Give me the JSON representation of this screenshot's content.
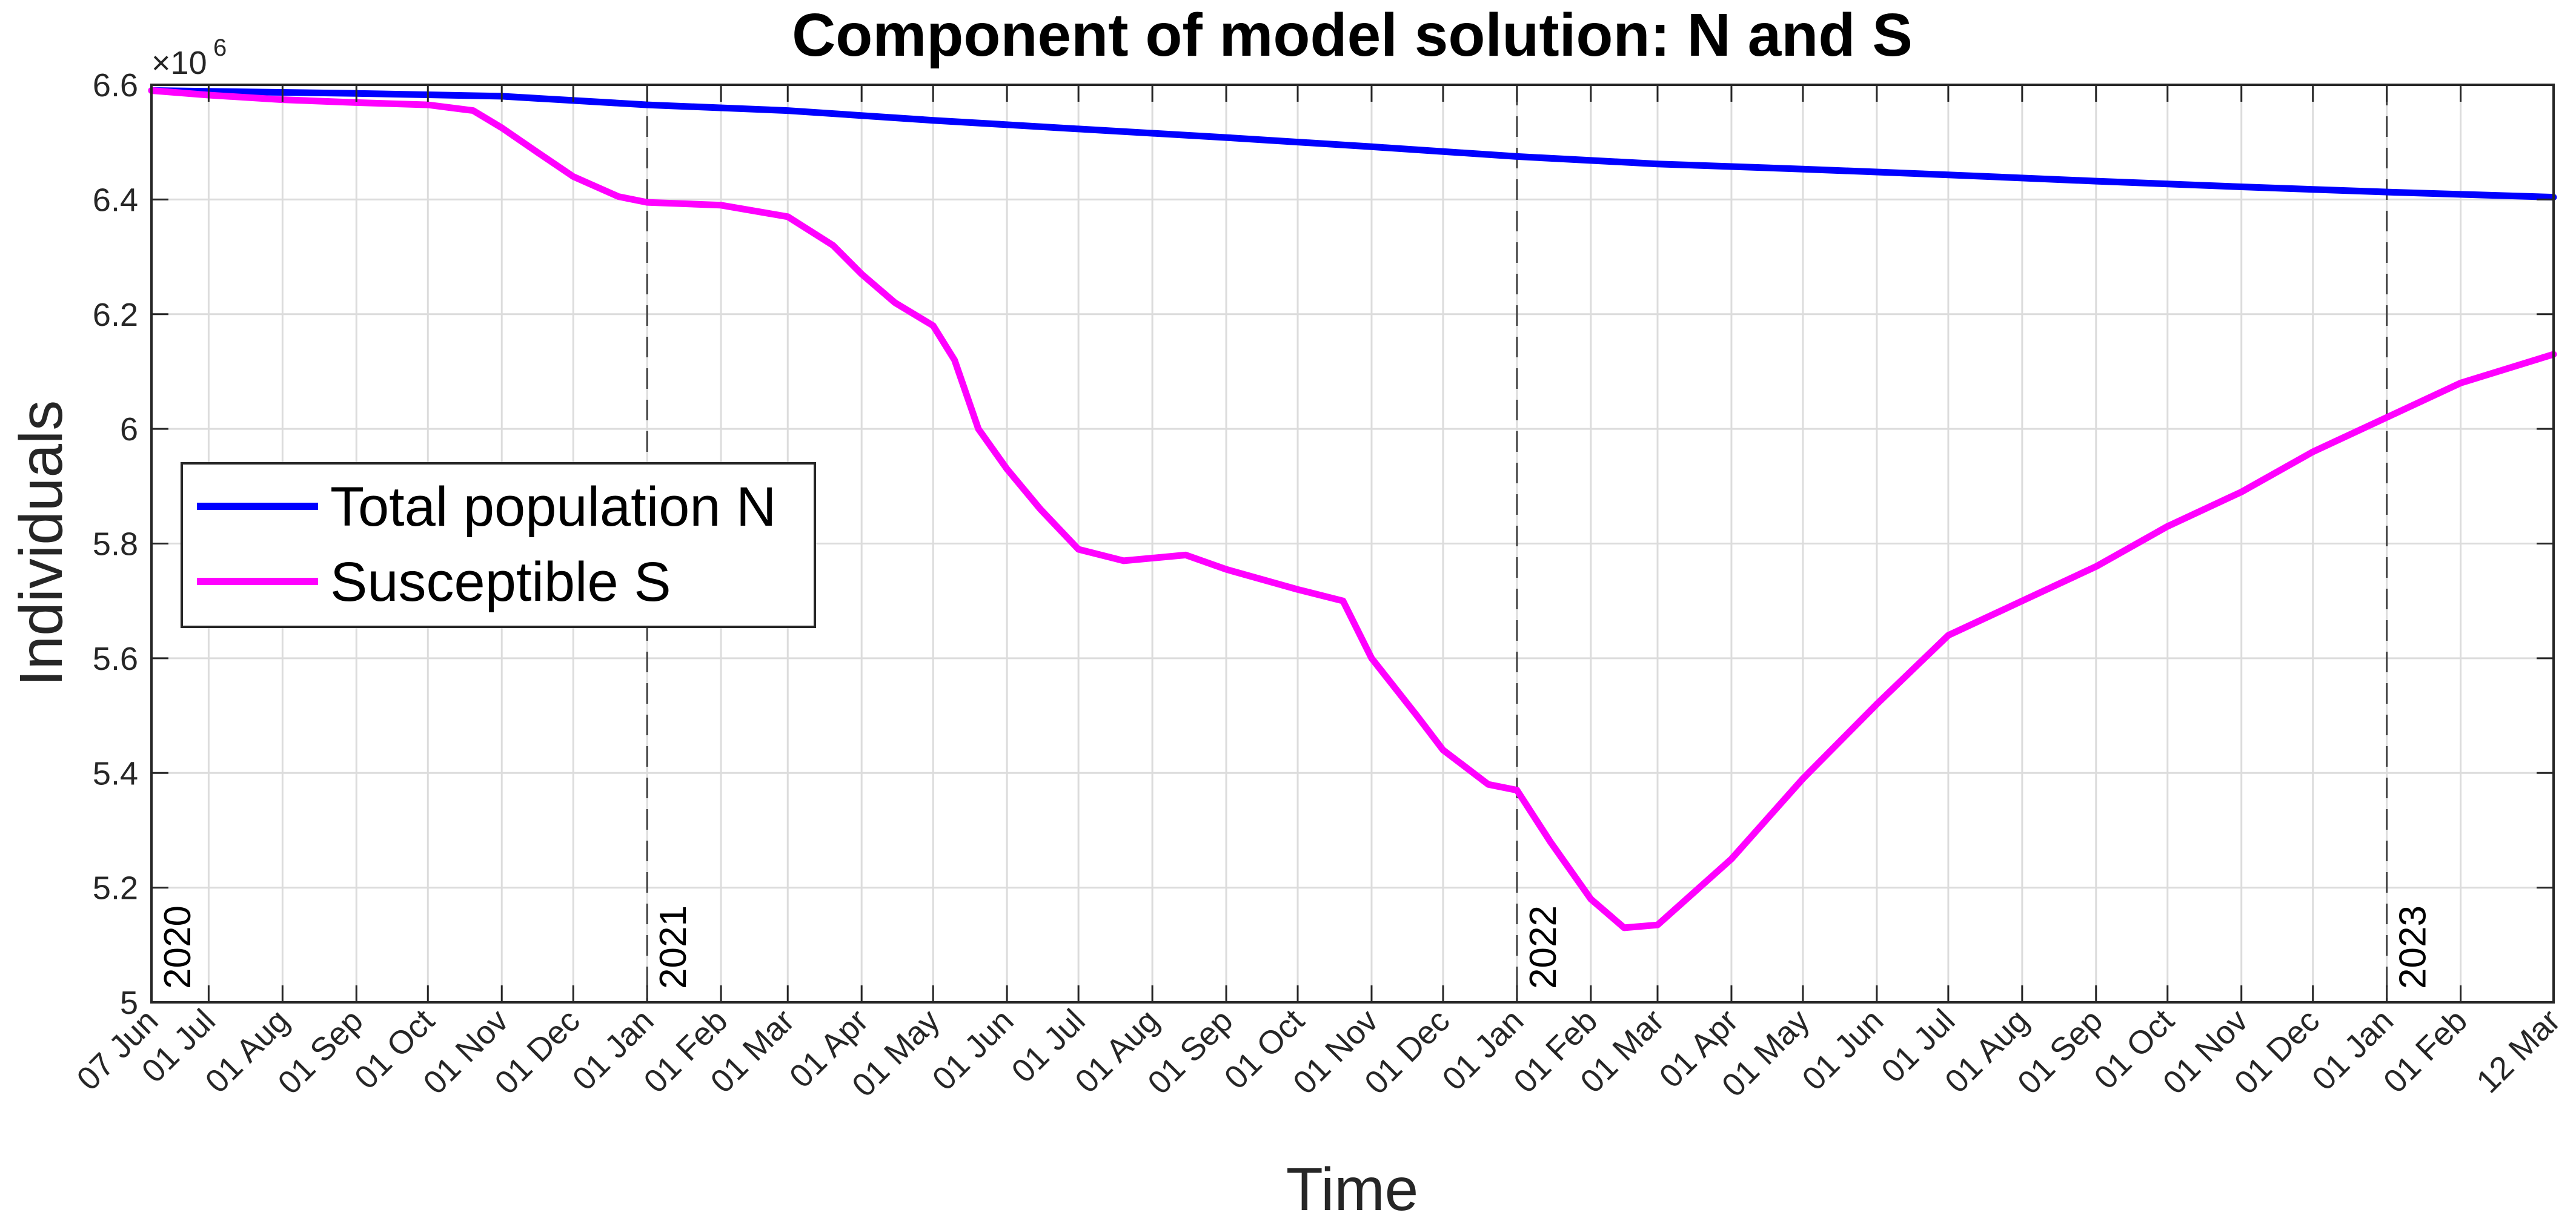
{
  "chart_data": {
    "type": "line",
    "title": "Component of model solution: N and S",
    "xlabel": "Time",
    "ylabel": "Individuals",
    "y_exponent_label": "×10",
    "y_exponent_power": "6",
    "ylim": [
      5.0,
      6.6
    ],
    "y_ticks": [
      5.0,
      5.2,
      5.4,
      5.6,
      5.8,
      6.0,
      6.2,
      6.4,
      6.6
    ],
    "y_tick_labels": [
      "5",
      "5.2",
      "5.4",
      "5.6",
      "5.8",
      "6",
      "6.2",
      "6.4",
      "6.6"
    ],
    "xlim": [
      "2020-06-07",
      "2023-03-12"
    ],
    "x_ticks": [
      "2020-06-07",
      "2020-07-01",
      "2020-08-01",
      "2020-09-01",
      "2020-10-01",
      "2020-11-01",
      "2020-12-01",
      "2021-01-01",
      "2021-02-01",
      "2021-03-01",
      "2021-04-01",
      "2021-05-01",
      "2021-06-01",
      "2021-07-01",
      "2021-08-01",
      "2021-09-01",
      "2021-10-01",
      "2021-11-01",
      "2021-12-01",
      "2022-01-01",
      "2022-02-01",
      "2022-03-01",
      "2022-04-01",
      "2022-05-01",
      "2022-06-01",
      "2022-07-01",
      "2022-08-01",
      "2022-09-01",
      "2022-10-01",
      "2022-11-01",
      "2022-12-01",
      "2023-01-01",
      "2023-02-01",
      "2023-03-12"
    ],
    "x_tick_labels": [
      "07 Jun",
      "01 Jul",
      "01 Aug",
      "01 Sep",
      "01 Oct",
      "01 Nov",
      "01 Dec",
      "01 Jan",
      "01 Feb",
      "01 Mar",
      "01 Apr",
      "01 May",
      "01 Jun",
      "01 Jul",
      "01 Aug",
      "01 Sep",
      "01 Oct",
      "01 Nov",
      "01 Dec",
      "01 Jan",
      "01 Feb",
      "01 Mar",
      "01 Apr",
      "01 May",
      "01 Jun",
      "01 Jul",
      "01 Aug",
      "01 Sep",
      "01 Oct",
      "01 Nov",
      "01 Dec",
      "01 Jan",
      "01 Feb",
      "12 Mar"
    ],
    "year_markers": [
      {
        "label": "2020",
        "date": "2020-06-07"
      },
      {
        "label": "2021",
        "date": "2021-01-01"
      },
      {
        "label": "2022",
        "date": "2022-01-01"
      },
      {
        "label": "2023",
        "date": "2023-01-01"
      }
    ],
    "grid": true,
    "legend_position": "center-left",
    "series": [
      {
        "name": "Total population N",
        "color": "#0000ff",
        "points": [
          [
            "2020-06-07",
            6.59
          ],
          [
            "2020-09-01",
            6.585
          ],
          [
            "2020-11-01",
            6.58
          ],
          [
            "2021-01-01",
            6.565
          ],
          [
            "2021-03-01",
            6.555
          ],
          [
            "2021-05-01",
            6.538
          ],
          [
            "2021-07-01",
            6.523
          ],
          [
            "2021-09-01",
            6.508
          ],
          [
            "2021-11-01",
            6.492
          ],
          [
            "2022-01-01",
            6.475
          ],
          [
            "2022-03-01",
            6.462
          ],
          [
            "2022-05-01",
            6.453
          ],
          [
            "2022-07-01",
            6.443
          ],
          [
            "2022-09-01",
            6.432
          ],
          [
            "2022-11-01",
            6.422
          ],
          [
            "2023-01-01",
            6.413
          ],
          [
            "2023-03-12",
            6.404
          ]
        ]
      },
      {
        "name": "Susceptible S",
        "color": "#ff00ff",
        "points": [
          [
            "2020-06-07",
            6.59
          ],
          [
            "2020-07-01",
            6.582
          ],
          [
            "2020-08-01",
            6.574
          ],
          [
            "2020-09-01",
            6.569
          ],
          [
            "2020-10-01",
            6.565
          ],
          [
            "2020-10-20",
            6.555
          ],
          [
            "2020-11-01",
            6.525
          ],
          [
            "2020-11-15",
            6.485
          ],
          [
            "2020-12-01",
            6.44
          ],
          [
            "2020-12-20",
            6.405
          ],
          [
            "2021-01-01",
            6.395
          ],
          [
            "2021-02-01",
            6.39
          ],
          [
            "2021-03-01",
            6.37
          ],
          [
            "2021-03-20",
            6.32
          ],
          [
            "2021-04-01",
            6.27
          ],
          [
            "2021-04-15",
            6.22
          ],
          [
            "2021-05-01",
            6.18
          ],
          [
            "2021-05-10",
            6.12
          ],
          [
            "2021-05-20",
            6.0
          ],
          [
            "2021-06-01",
            5.93
          ],
          [
            "2021-06-15",
            5.86
          ],
          [
            "2021-07-01",
            5.79
          ],
          [
            "2021-07-20",
            5.77
          ],
          [
            "2021-08-15",
            5.78
          ],
          [
            "2021-09-01",
            5.755
          ],
          [
            "2021-10-01",
            5.72
          ],
          [
            "2021-10-20",
            5.7
          ],
          [
            "2021-11-01",
            5.6
          ],
          [
            "2021-11-20",
            5.5
          ],
          [
            "2021-12-01",
            5.44
          ],
          [
            "2021-12-20",
            5.38
          ],
          [
            "2022-01-01",
            5.37
          ],
          [
            "2022-01-15",
            5.28
          ],
          [
            "2022-02-01",
            5.18
          ],
          [
            "2022-02-15",
            5.13
          ],
          [
            "2022-03-01",
            5.135
          ],
          [
            "2022-04-01",
            5.25
          ],
          [
            "2022-05-01",
            5.39
          ],
          [
            "2022-06-01",
            5.52
          ],
          [
            "2022-07-01",
            5.64
          ],
          [
            "2022-08-01",
            5.7
          ],
          [
            "2022-09-01",
            5.76
          ],
          [
            "2022-10-01",
            5.83
          ],
          [
            "2022-11-01",
            5.89
          ],
          [
            "2022-12-01",
            5.96
          ],
          [
            "2023-01-01",
            6.02
          ],
          [
            "2023-02-01",
            6.08
          ],
          [
            "2023-03-12",
            6.13
          ]
        ]
      }
    ]
  }
}
